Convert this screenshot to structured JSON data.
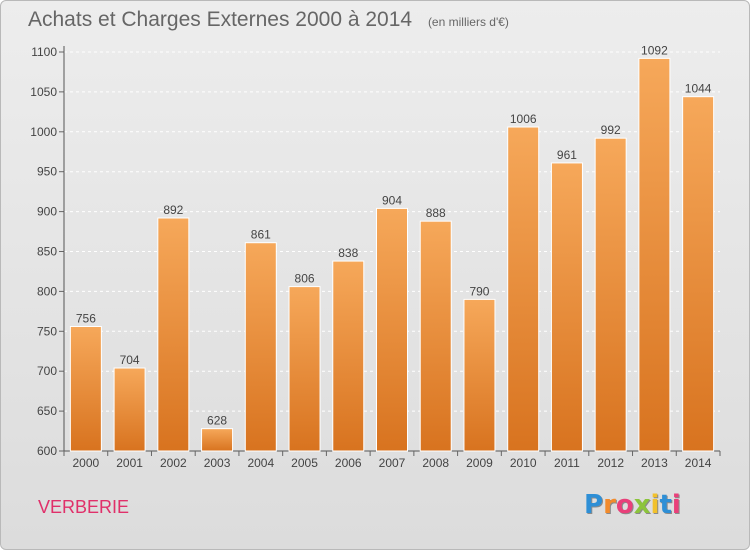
{
  "header": {
    "title": "Achats et Charges Externes 2000 à 2014",
    "unit": "(en milliers d'€)"
  },
  "footer": {
    "city": "VERBERIE",
    "logo_letters": [
      "P",
      "r",
      "o",
      "x",
      "i",
      "t",
      "i"
    ],
    "logo_colors": [
      "#2e8fd6",
      "#f28b2c",
      "#e9407a",
      "#8cc43c",
      "#f2c12c",
      "#2e8fd6",
      "#e9407a"
    ]
  },
  "colors": {
    "bar_light": "#f6a85a",
    "bar_dark": "#d8731f",
    "grid": "#ffffff",
    "text": "#444444"
  },
  "chart_data": {
    "type": "bar",
    "categories": [
      "2000",
      "2001",
      "2002",
      "2003",
      "2004",
      "2005",
      "2006",
      "2007",
      "2008",
      "2009",
      "2010",
      "2011",
      "2012",
      "2013",
      "2014"
    ],
    "values": [
      756,
      704,
      892,
      628,
      861,
      806,
      838,
      904,
      888,
      790,
      1006,
      961,
      992,
      1092,
      1044
    ],
    "ylim": [
      600,
      1100
    ],
    "yticks": [
      600,
      650,
      700,
      750,
      800,
      850,
      900,
      950,
      1000,
      1050,
      1100
    ],
    "grid": true,
    "data_labels": true
  }
}
